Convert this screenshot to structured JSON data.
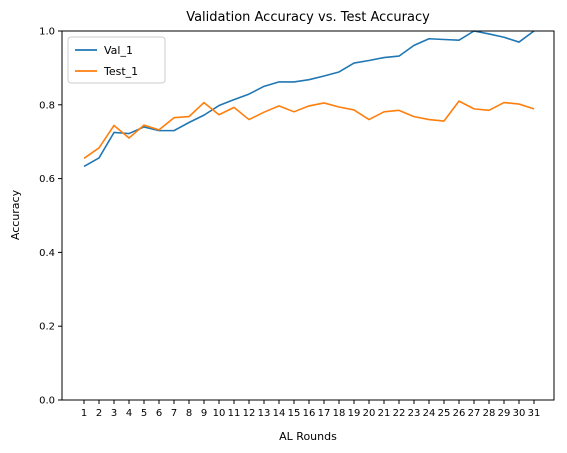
{
  "chart_data": {
    "type": "line",
    "title": "Validation Accuracy vs. Test Accuracy",
    "xlabel": "AL Rounds",
    "ylabel": "Accuracy",
    "ylim": [
      0,
      1.0
    ],
    "yticks": [
      "0.0",
      "0.2",
      "0.4",
      "0.6",
      "0.8",
      "1.0"
    ],
    "ytick_values": [
      0.0,
      0.2,
      0.4,
      0.6,
      0.8,
      1.0
    ],
    "x": [
      1,
      2,
      3,
      4,
      5,
      6,
      7,
      8,
      9,
      10,
      11,
      12,
      13,
      14,
      15,
      16,
      17,
      18,
      19,
      20,
      21,
      22,
      23,
      24,
      25,
      26,
      27,
      28,
      29,
      30,
      31
    ],
    "xticks": [
      "1",
      "2",
      "3",
      "4",
      "5",
      "6",
      "7",
      "8",
      "9",
      "10",
      "11",
      "12",
      "13",
      "14",
      "15",
      "16",
      "17",
      "18",
      "19",
      "20",
      "21",
      "22",
      "23",
      "24",
      "25",
      "26",
      "27",
      "28",
      "29",
      "30",
      "31"
    ],
    "legend_position": "top-left",
    "grid": false,
    "series": [
      {
        "name": "Val_1",
        "color": "#1f77b4",
        "values": [
          0.633,
          0.656,
          0.725,
          0.722,
          0.74,
          0.73,
          0.73,
          0.752,
          0.772,
          0.798,
          0.814,
          0.829,
          0.85,
          0.862,
          0.862,
          0.868,
          0.878,
          0.889,
          0.913,
          0.92,
          0.928,
          0.932,
          0.961,
          0.979,
          0.977,
          0.975,
          1.0,
          0.992,
          0.983,
          0.97,
          1.0
        ]
      },
      {
        "name": "Test_1",
        "color": "#ff7f0e",
        "values": [
          0.655,
          0.683,
          0.744,
          0.71,
          0.745,
          0.732,
          0.765,
          0.768,
          0.806,
          0.773,
          0.793,
          0.76,
          0.78,
          0.797,
          0.781,
          0.797,
          0.805,
          0.794,
          0.786,
          0.76,
          0.781,
          0.785,
          0.768,
          0.76,
          0.756,
          0.81,
          0.789,
          0.785,
          0.806,
          0.802,
          0.789
        ]
      }
    ]
  }
}
